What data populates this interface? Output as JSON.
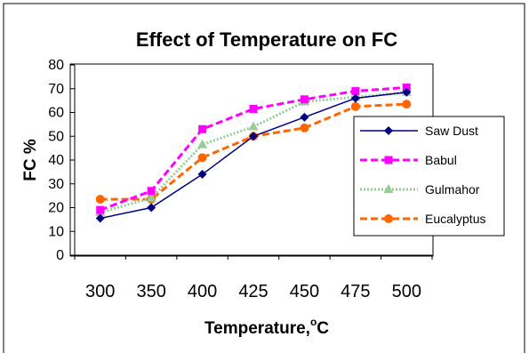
{
  "chart_data": {
    "type": "line",
    "title": "Effect of Temperature on FC",
    "xlabel": "Temperature,",
    "xlabel_unit": "C",
    "xlabel_unit_sup": "o",
    "ylabel": "FC %",
    "categories": [
      "300",
      "350",
      "400",
      "425",
      "450",
      "475",
      "500"
    ],
    "ylim": [
      0,
      80
    ],
    "yticks": [
      "0",
      "10",
      "20",
      "30",
      "40",
      "50",
      "60",
      "70",
      "80"
    ],
    "grid": false,
    "legend_position": "right",
    "series": [
      {
        "name": "Saw Dust",
        "values": [
          15.5,
          20,
          34,
          50,
          58,
          66,
          68.5
        ],
        "color": "#000080",
        "marker": "diamond",
        "dash": "solid"
      },
      {
        "name": "Babul",
        "values": [
          19,
          27,
          53,
          61.5,
          65.5,
          69,
          70.5
        ],
        "color": "#ff00ff",
        "marker": "square",
        "dash": "dash"
      },
      {
        "name": "Gulmahor",
        "values": [
          18,
          24,
          46.5,
          54,
          64.5,
          66.5,
          68.5
        ],
        "color": "#99cc99",
        "marker": "triangle",
        "dash": "dotted"
      },
      {
        "name": "Eucalyptus",
        "values": [
          23.5,
          23.5,
          41,
          50,
          53.5,
          62.5,
          63.5
        ],
        "color": "#ff6600",
        "marker": "circle",
        "dash": "dash"
      }
    ]
  }
}
